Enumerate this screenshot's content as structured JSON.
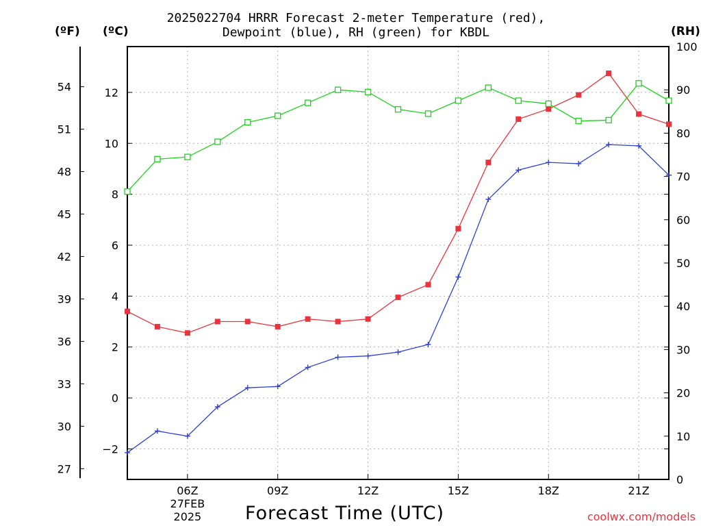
{
  "title": {
    "line1": "2025022704 HRRR Forecast 2-meter Temperature (red),",
    "line2": "Dewpoint (blue), RH (green) for KBDL"
  },
  "units": {
    "fahrenheit": "(ºF)",
    "celsius": "(ºC)",
    "rh": "(RH)"
  },
  "x_axis_title": "Forecast Time (UTC)",
  "date_label": {
    "day": "27FEB",
    "year": "2025"
  },
  "credit": "coolwx.com/models",
  "colors": {
    "temperature": "#e8343c",
    "dewpoint": "#2b3fd6",
    "rh": "#19d419",
    "grid": "#b0b0b0"
  },
  "chart_data": {
    "type": "line",
    "x": [
      "04Z",
      "05Z",
      "06Z",
      "07Z",
      "08Z",
      "09Z",
      "10Z",
      "11Z",
      "12Z",
      "13Z",
      "14Z",
      "15Z",
      "16Z",
      "17Z",
      "18Z",
      "19Z",
      "20Z",
      "21Z",
      "22Z"
    ],
    "xlim": [
      4,
      22
    ],
    "x_tick_labels": [
      "06Z",
      "09Z",
      "12Z",
      "15Z",
      "18Z",
      "21Z"
    ],
    "x_tick_hours": [
      6,
      9,
      12,
      15,
      18,
      21
    ],
    "y_left_celsius": {
      "ylim": [
        -3.2,
        13.8
      ],
      "ticks": [
        -2,
        0,
        2,
        4,
        6,
        8,
        10,
        12
      ]
    },
    "y_left_fahrenheit": {
      "ticks": [
        27,
        30,
        33,
        36,
        39,
        42,
        45,
        48,
        51,
        54
      ]
    },
    "y_right_rh": {
      "ylim": [
        0,
        100
      ],
      "ticks": [
        0,
        10,
        20,
        30,
        40,
        50,
        60,
        70,
        80,
        90,
        100
      ]
    },
    "grid": true,
    "series": [
      {
        "name": "Temperature",
        "axis": "celsius",
        "marker": "filled-square",
        "values": [
          3.4,
          2.8,
          2.55,
          3.0,
          3.0,
          2.8,
          3.1,
          3.0,
          3.1,
          3.95,
          4.45,
          6.65,
          9.25,
          10.95,
          11.35,
          11.9,
          12.75,
          11.15,
          10.75
        ]
      },
      {
        "name": "Dewpoint",
        "axis": "celsius",
        "marker": "plus",
        "values": [
          -2.15,
          -1.3,
          -1.5,
          -0.35,
          0.4,
          0.45,
          1.2,
          1.6,
          1.65,
          1.8,
          2.1,
          4.75,
          7.8,
          8.95,
          9.25,
          9.2,
          9.95,
          9.9,
          8.75
        ]
      },
      {
        "name": "RH",
        "axis": "rh",
        "marker": "open-square",
        "values": [
          66.5,
          74,
          74.5,
          78,
          82.5,
          84,
          87,
          90,
          89.5,
          85.5,
          84.5,
          87.5,
          90.5,
          87.5,
          86.8,
          82.8,
          83,
          91.5,
          87.5
        ]
      }
    ]
  }
}
